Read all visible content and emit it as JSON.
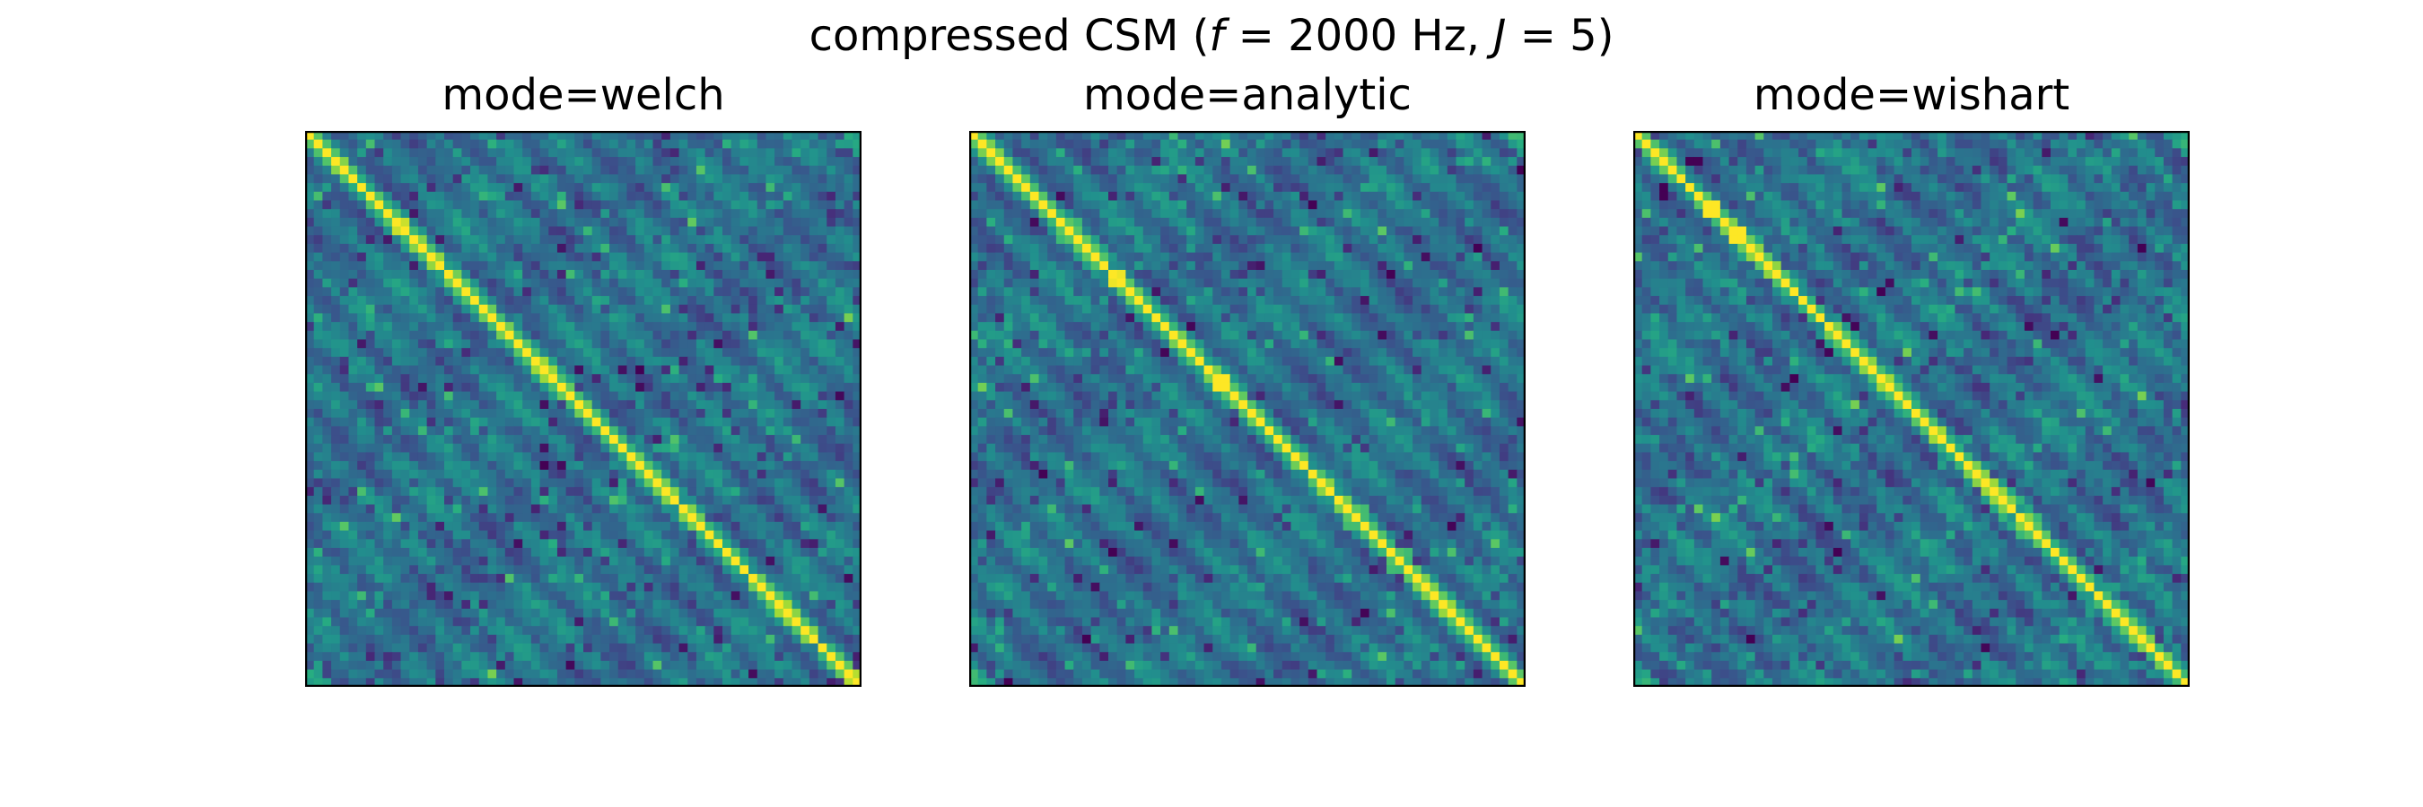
{
  "figure": {
    "title_prefix": "compressed CSM (",
    "title_f_symbol": "f",
    "title_f_value": " = 2000 Hz, ",
    "title_j_symbol": "J",
    "title_j_value": " = 5)"
  },
  "chart_data": [
    {
      "type": "heatmap",
      "title": "mode=welch",
      "grid": false,
      "axes_ticks": "none",
      "colormap": "viridis",
      "matrix_size": [
        64,
        64
      ],
      "pattern": {
        "diagonal": 1.0,
        "background": 0.38,
        "noise": 0.07,
        "seed": 11
      }
    },
    {
      "type": "heatmap",
      "title": "mode=analytic",
      "grid": false,
      "axes_ticks": "none",
      "colormap": "viridis",
      "matrix_size": [
        64,
        64
      ],
      "pattern": {
        "diagonal": 1.0,
        "background": 0.38,
        "noise": 0.06,
        "seed": 23
      }
    },
    {
      "type": "heatmap",
      "title": "mode=wishart",
      "grid": false,
      "axes_ticks": "none",
      "colormap": "viridis",
      "matrix_size": [
        64,
        64
      ],
      "pattern": {
        "diagonal": 1.0,
        "background": 0.38,
        "noise": 0.08,
        "seed": 37
      }
    }
  ]
}
